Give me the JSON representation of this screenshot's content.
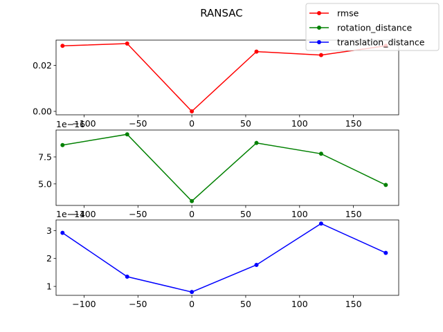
{
  "chart_data": {
    "type": "line",
    "title": "RANSAC",
    "legend_position": "top-right",
    "x_ticks": [
      -100,
      -50,
      0,
      50,
      100,
      150
    ],
    "x_tick_labels": [
      "−100",
      "−50",
      "0",
      "50",
      "100",
      "150"
    ],
    "xlim": [
      -126,
      192
    ],
    "grid": false,
    "legend": [
      {
        "name": "rmse",
        "color": "#ff0000"
      },
      {
        "name": "rotation_distance",
        "color": "#008000"
      },
      {
        "name": "translation_distance",
        "color": "#0000ff"
      }
    ],
    "subplots": [
      {
        "series_name": "rmse",
        "color": "#ff0000",
        "x": [
          -120,
          -60,
          0,
          60,
          120,
          180
        ],
        "y": [
          0.0285,
          0.0295,
          0.0,
          0.026,
          0.0245,
          0.0285
        ],
        "ylim": [
          -0.0015,
          0.031
        ],
        "y_ticks": [
          0.0,
          0.02
        ],
        "y_tick_labels": [
          "0.00",
          "0.02"
        ],
        "offset_text": ""
      },
      {
        "series_name": "rotation_distance",
        "color": "#008000",
        "x": [
          -120,
          -60,
          0,
          60,
          120,
          180
        ],
        "y": [
          8.6,
          9.6,
          3.4,
          8.8,
          7.8,
          4.9
        ],
        "ylim": [
          3.0,
          10.0
        ],
        "y_ticks": [
          5.0,
          7.5
        ],
        "y_tick_labels": [
          "5.0",
          "7.5"
        ],
        "offset_text": "1e−16"
      },
      {
        "series_name": "translation_distance",
        "color": "#0000ff",
        "x": [
          -120,
          -60,
          0,
          60,
          120,
          180
        ],
        "y": [
          2.92,
          1.35,
          0.8,
          1.77,
          3.25,
          2.2
        ],
        "ylim": [
          0.68,
          3.38
        ],
        "y_ticks": [
          1,
          2,
          3
        ],
        "y_tick_labels": [
          "1",
          "2",
          "3"
        ],
        "offset_text": "1e−14"
      }
    ]
  }
}
